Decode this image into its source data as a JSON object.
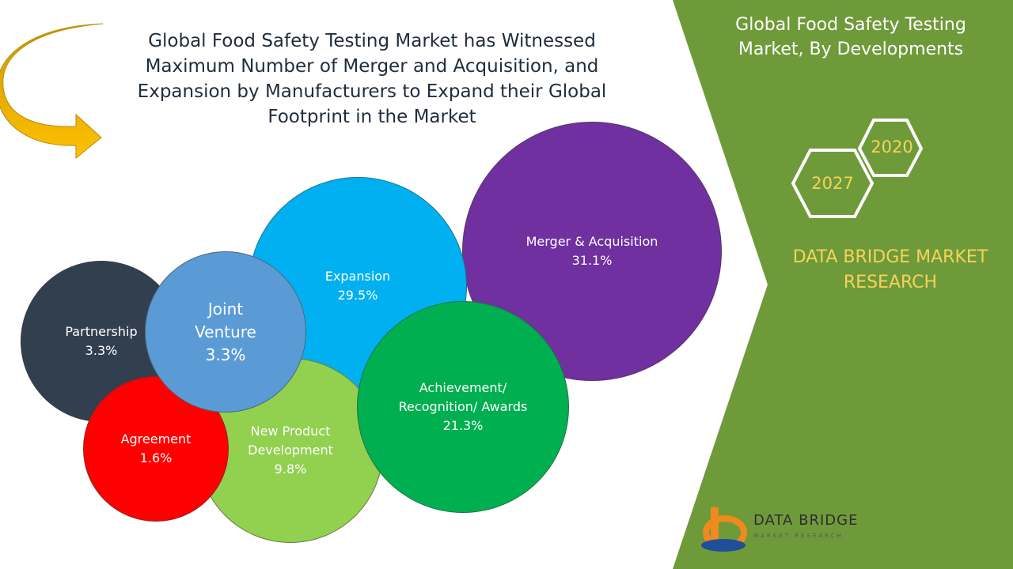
{
  "headline": "Global Food Safety Testing Market has Witnessed Maximum Number of Merger and Acquisition, and Expansion by Manufacturers to Expand their Global Footprint in the Market",
  "side_panel": {
    "title": "Global Food Safety Testing Market, By Developments",
    "years": [
      "2020",
      "2027"
    ],
    "brand": "DATA BRIDGE MARKET RESEARCH",
    "panel_color": "#6f9a3a",
    "accent_color": "#f5d35a"
  },
  "logo": {
    "text": "DATA BRIDGE",
    "subtext": "MARKET RESEARCH"
  },
  "chart_data": {
    "type": "bubble",
    "title": "Global Food Safety Testing Market, By Developments",
    "unit": "%",
    "items": [
      {
        "label": "Merger & Acquisition",
        "value": 31.1,
        "color": "#7030a0"
      },
      {
        "label": "Expansion",
        "value": 29.5,
        "color": "#00b0f0"
      },
      {
        "label": "Achievement/ Recognition/ Awards",
        "value": 21.3,
        "color": "#00b050"
      },
      {
        "label": "New Product Development",
        "value": 9.8,
        "color": "#92d050"
      },
      {
        "label": "Partnership",
        "value": 3.3,
        "color": "#323f4f"
      },
      {
        "label": "Joint Venture",
        "value": 3.3,
        "color": "#5b9bd5"
      },
      {
        "label": "Agreement",
        "value": 1.6,
        "color": "#ff0000"
      }
    ],
    "value_labels": [
      "31.1%",
      "29.5%",
      "21.3%",
      "9.8%",
      "3.3%",
      "3.3%",
      "1.6%"
    ]
  }
}
